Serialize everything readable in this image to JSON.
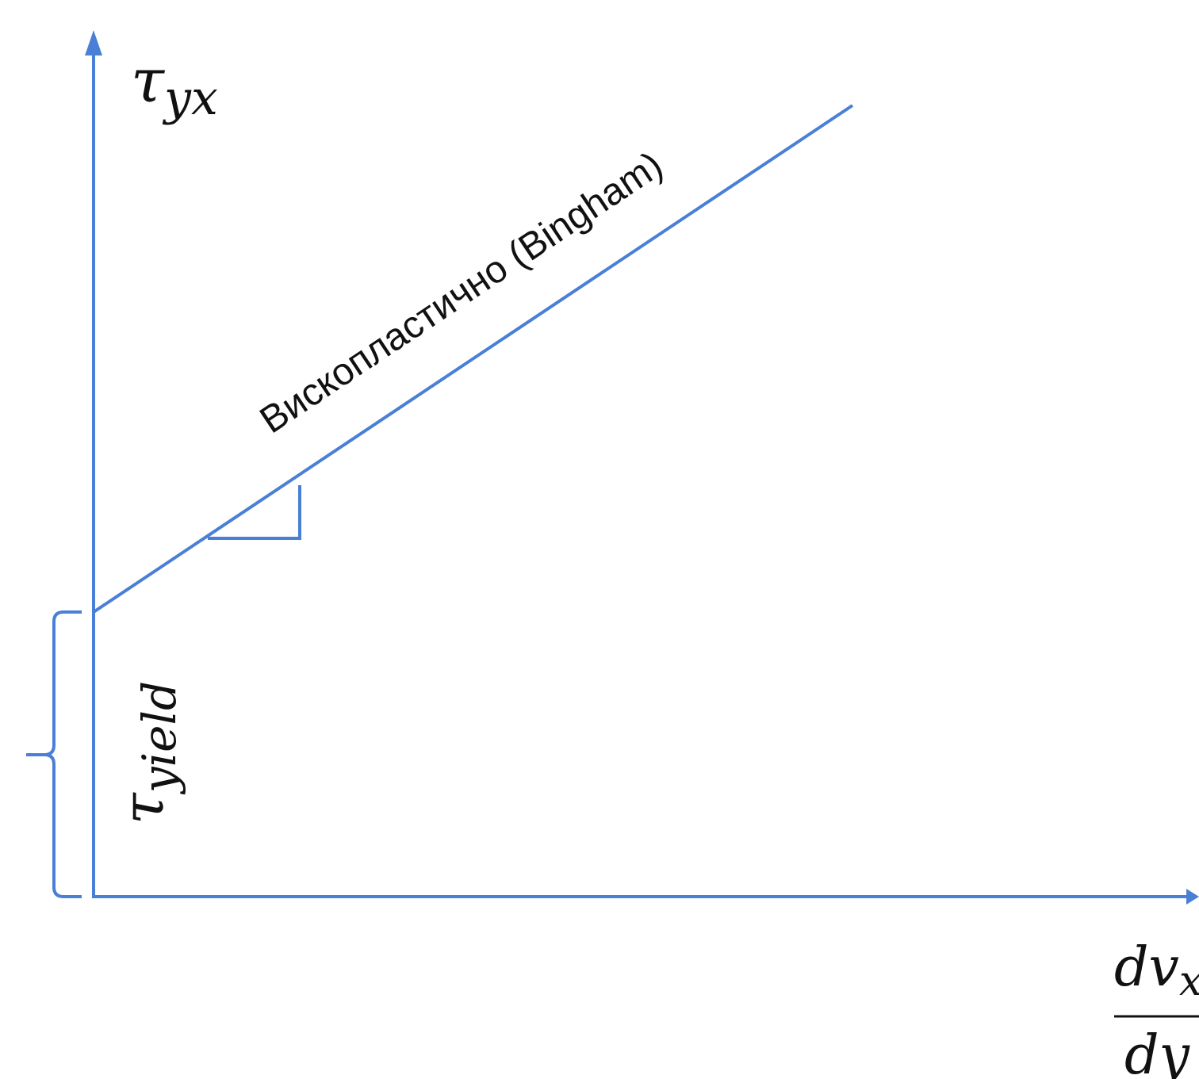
{
  "diagram": {
    "y_axis_label": {
      "symbol": "τ",
      "subscript": "yx"
    },
    "yield_label": {
      "symbol": "τ",
      "subscript": "yield"
    },
    "line_label": "Вископластично (Bingham)",
    "x_axis_label": {
      "numerator": "dv",
      "numerator_subscript": "x",
      "denominator": "dy"
    },
    "colors": {
      "axis": "#4a7fd6",
      "line": "#4a7fd6",
      "text": "#111111",
      "background": "#ffffff"
    }
  }
}
